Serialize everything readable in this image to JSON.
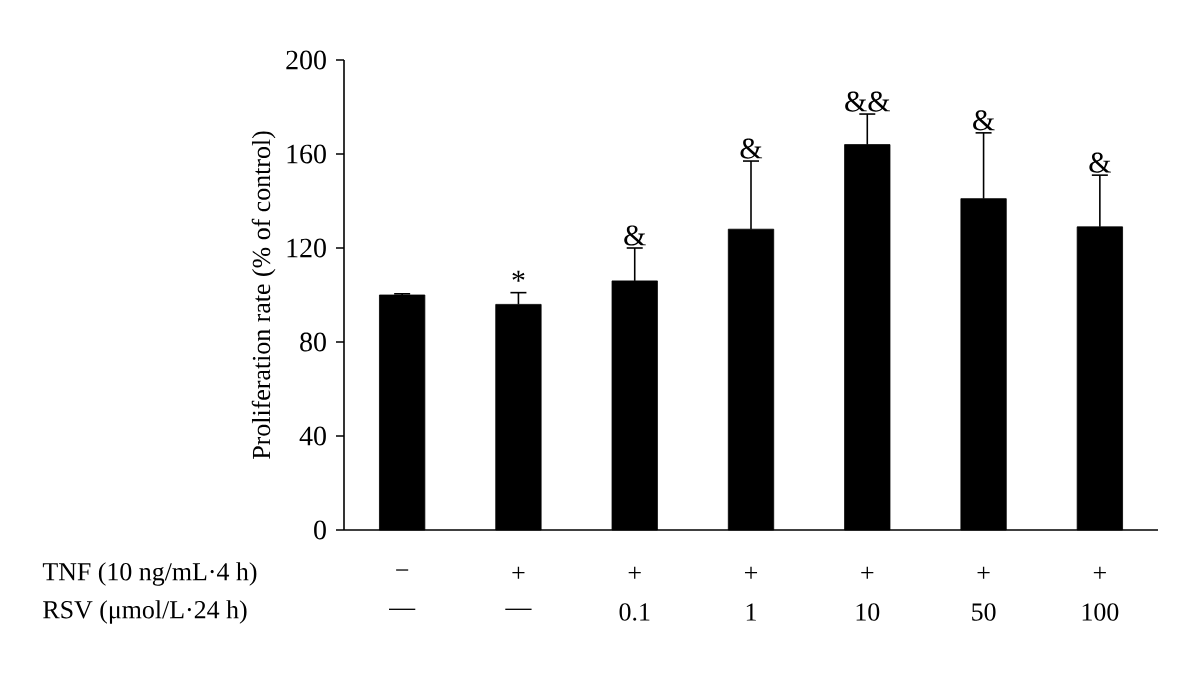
{
  "chart_data": {
    "type": "bar",
    "ylabel": "Proliferation rate (% of control)",
    "categories": [
      "—",
      "—",
      "0.1",
      "1",
      "10",
      "50",
      "100"
    ],
    "values": [
      100,
      96,
      106,
      128,
      164,
      141,
      129
    ],
    "color": "#000000",
    "errors": [
      [
        100,
        100.5
      ],
      [
        96,
        101
      ],
      [
        106,
        120
      ],
      [
        128,
        157
      ],
      [
        164,
        177
      ],
      [
        141,
        169
      ],
      [
        129,
        151
      ]
    ],
    "value_labels": [
      null,
      "*",
      "&",
      "&",
      "&&",
      "&",
      "&"
    ],
    "annotations": [
      "TNF (10 ng/mL·4 h)",
      "RSV (μmol/L·24 h)",
      "−",
      "+",
      "+",
      "+",
      "+",
      "+",
      "+"
    ],
    "ylim": [
      0,
      200
    ],
    "yticks": [
      0,
      40,
      80,
      120,
      160,
      200
    ],
    "grid": false
  }
}
